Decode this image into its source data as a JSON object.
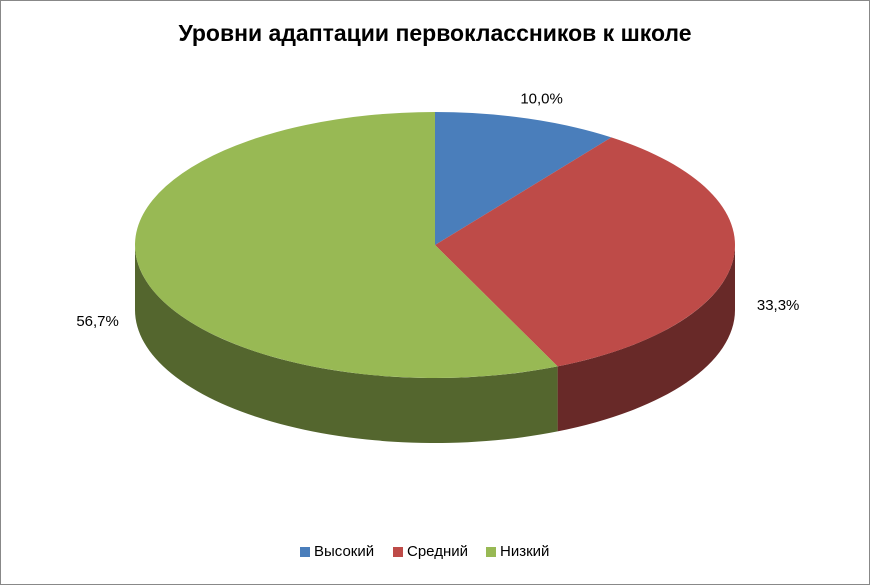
{
  "chart_data": {
    "type": "pie",
    "title": "Уровни адаптации первоклассников к школе",
    "categories": [
      "Высокий",
      "Средний",
      "Низкий"
    ],
    "values": [
      10.0,
      33.3,
      56.7
    ],
    "value_labels": [
      "10,0%",
      "33,3%",
      "56,7%"
    ],
    "colors": [
      "#4a7ebb",
      "#be4b48",
      "#98b954"
    ],
    "legend": "bottom"
  }
}
